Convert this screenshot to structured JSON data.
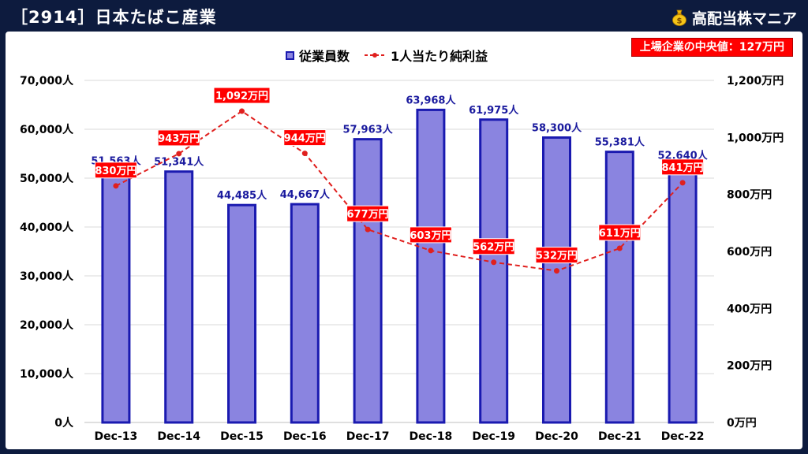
{
  "header": {
    "title": "［2914］日本たばこ産業",
    "brand": "高配当株マニア",
    "median_label": "上場企業の中央値：127万円"
  },
  "colors": {
    "background": "#0d1b3e",
    "bar_fill": "#8a84e0",
    "bar_stroke": "#1a1ab0",
    "line": "#e0201e",
    "label_box": "#ff0000",
    "bar_label_text": "#1a1a9e"
  },
  "icons": {
    "brand": "money-bag-icon"
  },
  "chart_data": {
    "type": "bar",
    "categories": [
      "Dec-13",
      "Dec-14",
      "Dec-15",
      "Dec-16",
      "Dec-17",
      "Dec-18",
      "Dec-19",
      "Dec-20",
      "Dec-21",
      "Dec-22"
    ],
    "series": [
      {
        "name": "従業員数",
        "type": "bar",
        "axis": "left",
        "values": [
          51563,
          51341,
          44485,
          44667,
          57963,
          63968,
          61975,
          58300,
          55381,
          52640
        ],
        "labels": [
          "51,563人",
          "51,341人",
          "44,485人",
          "44,667人",
          "57,963人",
          "63,968人",
          "61,975人",
          "58,300人",
          "55,381人",
          "52,640人"
        ]
      },
      {
        "name": "1人当たり純利益",
        "type": "line",
        "axis": "right",
        "values": [
          830,
          943,
          1092,
          944,
          677,
          603,
          562,
          532,
          611,
          841
        ],
        "labels": [
          "830万円",
          "943万円",
          "1,092万円",
          "944万円",
          "677万円",
          "603万円",
          "562万円",
          "532万円",
          "611万円",
          "841万円"
        ]
      }
    ],
    "left_axis": {
      "ylim": [
        0,
        70000
      ],
      "ticks": [
        0,
        10000,
        20000,
        30000,
        40000,
        50000,
        60000,
        70000
      ],
      "tick_labels": [
        "0人",
        "10,000人",
        "20,000人",
        "30,000人",
        "40,000人",
        "50,000人",
        "60,000人",
        "70,000人"
      ]
    },
    "right_axis": {
      "ylim": [
        0,
        1200
      ],
      "ticks": [
        0,
        200,
        400,
        600,
        800,
        1000,
        1200
      ],
      "tick_labels": [
        "0万円",
        "200万円",
        "400万円",
        "600万円",
        "800万円",
        "1,000万円",
        "1,200万円"
      ]
    },
    "legend": "top-center",
    "grid": true
  }
}
